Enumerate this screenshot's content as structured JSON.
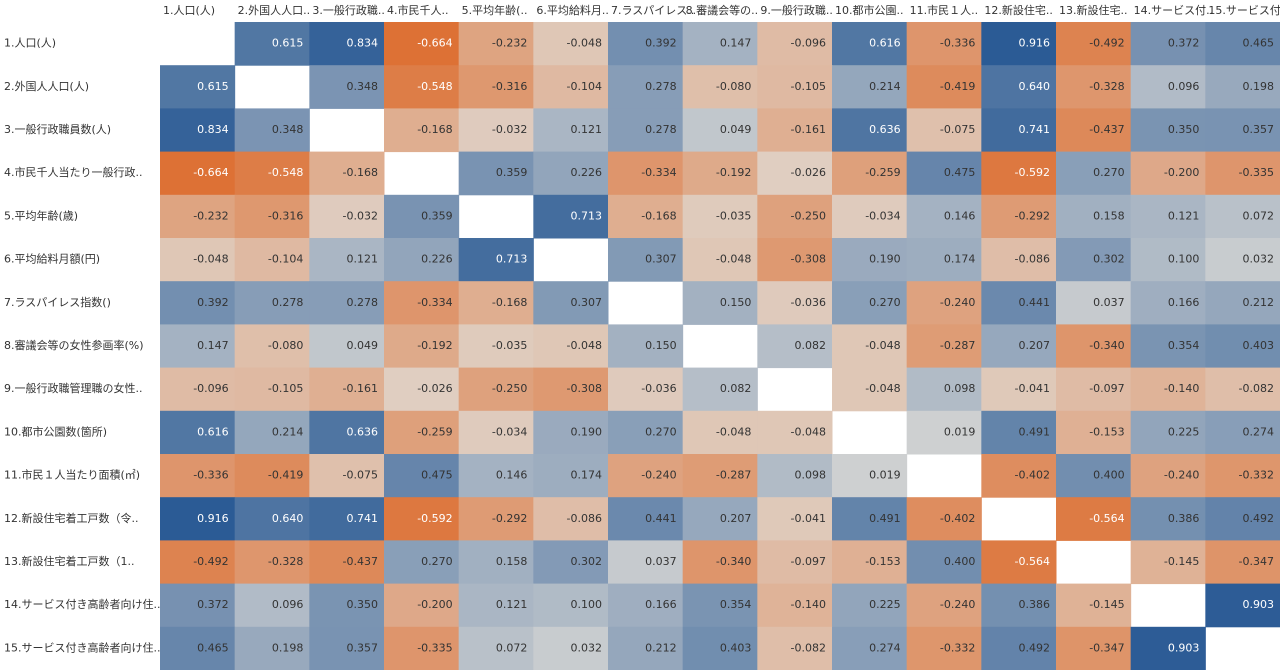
{
  "chart_data": {
    "type": "heatmap",
    "x_categories": [
      "1.人口(人)",
      "2.外国人人口..",
      "3.一般行政職..",
      "4.市民千人..",
      "5.平均年齢(..",
      "6.平均給料月..",
      "7.ラスパイレス..",
      "8.審議会等の..",
      "9.一般行政職..",
      "10.都市公園..",
      "11.市民１人..",
      "12.新設住宅..",
      "13.新設住宅..",
      "14.サービス付..",
      "15.サービス付.."
    ],
    "y_categories": [
      "1.人口(人)",
      "2.外国人人口(人)",
      "3.一般行政職員数(人)",
      "4.市民千人当たり一般行政..",
      "5.平均年齢(歳)",
      "6.平均給料月額(円)",
      "7.ラスパイレス指数()",
      "8.審議会等の女性参画率(%)",
      "9.一般行政職管理職の女性..",
      "10.都市公園数(箇所)",
      "11.市民１人当たり面積(㎡)",
      "12.新設住宅着工戸数（令..",
      "13.新設住宅着工戸数（1..",
      "14.サービス付き高齢者向け住..",
      "15.サービス付き高齢者向け住.."
    ],
    "values": [
      [
        null,
        0.615,
        0.834,
        -0.664,
        -0.232,
        -0.048,
        0.392,
        0.147,
        -0.096,
        0.616,
        -0.336,
        0.916,
        -0.492,
        0.372,
        0.465
      ],
      [
        0.615,
        null,
        0.348,
        -0.548,
        -0.316,
        -0.104,
        0.278,
        -0.08,
        -0.105,
        0.214,
        -0.419,
        0.64,
        -0.328,
        0.096,
        0.198
      ],
      [
        0.834,
        0.348,
        null,
        -0.168,
        -0.032,
        0.121,
        0.278,
        0.049,
        -0.161,
        0.636,
        -0.075,
        0.741,
        -0.437,
        0.35,
        0.357
      ],
      [
        -0.664,
        -0.548,
        -0.168,
        null,
        0.359,
        0.226,
        -0.334,
        -0.192,
        -0.026,
        -0.259,
        0.475,
        -0.592,
        0.27,
        -0.2,
        -0.335
      ],
      [
        -0.232,
        -0.316,
        -0.032,
        0.359,
        null,
        0.713,
        -0.168,
        -0.035,
        -0.25,
        -0.034,
        0.146,
        -0.292,
        0.158,
        0.121,
        0.072
      ],
      [
        -0.048,
        -0.104,
        0.121,
        0.226,
        0.713,
        null,
        0.307,
        -0.048,
        -0.308,
        0.19,
        0.174,
        -0.086,
        0.302,
        0.1,
        0.032
      ],
      [
        0.392,
        0.278,
        0.278,
        -0.334,
        -0.168,
        0.307,
        null,
        0.15,
        -0.036,
        0.27,
        -0.24,
        0.441,
        0.037,
        0.166,
        0.212
      ],
      [
        0.147,
        -0.08,
        0.049,
        -0.192,
        -0.035,
        -0.048,
        0.15,
        null,
        0.082,
        -0.048,
        -0.287,
        0.207,
        -0.34,
        0.354,
        0.403
      ],
      [
        -0.096,
        -0.105,
        -0.161,
        -0.026,
        -0.25,
        -0.308,
        -0.036,
        0.082,
        null,
        -0.048,
        0.098,
        -0.041,
        -0.097,
        -0.14,
        -0.082
      ],
      [
        0.616,
        0.214,
        0.636,
        -0.259,
        -0.034,
        0.19,
        0.27,
        -0.048,
        -0.048,
        null,
        0.019,
        0.491,
        -0.153,
        0.225,
        0.274
      ],
      [
        -0.336,
        -0.419,
        -0.075,
        0.475,
        0.146,
        0.174,
        -0.24,
        -0.287,
        0.098,
        0.019,
        null,
        -0.402,
        0.4,
        -0.24,
        -0.332
      ],
      [
        0.916,
        0.64,
        0.741,
        -0.592,
        -0.292,
        -0.086,
        0.441,
        0.207,
        -0.041,
        0.491,
        -0.402,
        null,
        -0.564,
        0.386,
        0.492
      ],
      [
        -0.492,
        -0.328,
        -0.437,
        0.27,
        0.158,
        0.302,
        0.037,
        -0.34,
        -0.097,
        -0.153,
        0.4,
        -0.564,
        null,
        -0.145,
        -0.347
      ],
      [
        0.372,
        0.096,
        0.35,
        -0.2,
        0.121,
        0.1,
        0.166,
        0.354,
        -0.14,
        0.225,
        -0.24,
        0.386,
        -0.145,
        null,
        0.903
      ],
      [
        0.465,
        0.198,
        0.357,
        -0.335,
        0.072,
        0.032,
        0.212,
        0.403,
        -0.082,
        0.274,
        -0.332,
        0.492,
        -0.347,
        0.903,
        null
      ]
    ],
    "value_labels": [
      [
        null,
        "0.615",
        "0.834",
        "-0.664",
        "-0.232",
        "-0.048",
        "0.392",
        "0.147",
        "-0.096",
        "0.616",
        "-0.336",
        "0.916",
        "-0.492",
        "0.372",
        "0.465"
      ],
      [
        "0.615",
        null,
        "0.348",
        "-0.548",
        "-0.316",
        "-0.104",
        "0.278",
        "-0.080",
        "-0.105",
        "0.214",
        "-0.419",
        "0.640",
        "-0.328",
        "0.096",
        "0.198"
      ],
      [
        "0.834",
        "0.348",
        null,
        "-0.168",
        "-0.032",
        "0.121",
        "0.278",
        "0.049",
        "-0.161",
        "0.636",
        "-0.075",
        "0.741",
        "-0.437",
        "0.350",
        "0.357"
      ],
      [
        "-0.664",
        "-0.548",
        "-0.168",
        null,
        "0.359",
        "0.226",
        "-0.334",
        "-0.192",
        "-0.026",
        "-0.259",
        "0.475",
        "-0.592",
        "0.270",
        "-0.200",
        "-0.335"
      ],
      [
        "-0.232",
        "-0.316",
        "-0.032",
        "0.359",
        null,
        "0.713",
        "-0.168",
        "-0.035",
        "-0.250",
        "-0.034",
        "0.146",
        "-0.292",
        "0.158",
        "0.121",
        "0.072"
      ],
      [
        "-0.048",
        "-0.104",
        "0.121",
        "0.226",
        "0.713",
        null,
        "0.307",
        "-0.048",
        "-0.308",
        "0.190",
        "0.174",
        "-0.086",
        "0.302",
        "0.100",
        "0.032"
      ],
      [
        "0.392",
        "0.278",
        "0.278",
        "-0.334",
        "-0.168",
        "0.307",
        null,
        "0.150",
        "-0.036",
        "0.270",
        "-0.240",
        "0.441",
        "0.037",
        "0.166",
        "0.212"
      ],
      [
        "0.147",
        "-0.080",
        "0.049",
        "-0.192",
        "-0.035",
        "-0.048",
        "0.150",
        null,
        "0.082",
        "-0.048",
        "-0.287",
        "0.207",
        "-0.340",
        "0.354",
        "0.403"
      ],
      [
        "-0.096",
        "-0.105",
        "-0.161",
        "-0.026",
        "-0.250",
        "-0.308",
        "-0.036",
        "0.082",
        null,
        "-0.048",
        "0.098",
        "-0.041",
        "-0.097",
        "-0.140",
        "-0.082"
      ],
      [
        "0.616",
        "0.214",
        "0.636",
        "-0.259",
        "-0.034",
        "0.190",
        "0.270",
        "-0.048",
        "-0.048",
        null,
        "0.019",
        "0.491",
        "-0.153",
        "0.225",
        "0.274"
      ],
      [
        "-0.336",
        "-0.419",
        "-0.075",
        "0.475",
        "0.146",
        "0.174",
        "-0.240",
        "-0.287",
        "0.098",
        "0.019",
        null,
        "-0.402",
        "0.400",
        "-0.240",
        "-0.332"
      ],
      [
        "0.916",
        "0.640",
        "0.741",
        "-0.592",
        "-0.292",
        "-0.086",
        "0.441",
        "0.207",
        "-0.041",
        "0.491",
        "-0.402",
        null,
        "-0.564",
        "0.386",
        "0.492"
      ],
      [
        "-0.492",
        "-0.328",
        "-0.437",
        "0.270",
        "0.158",
        "0.302",
        "0.037",
        "-0.340",
        "-0.097",
        "-0.153",
        "0.400",
        "-0.564",
        null,
        "-0.145",
        "-0.347"
      ],
      [
        "0.372",
        "0.096",
        "0.350",
        "-0.200",
        "0.121",
        "0.100",
        "0.166",
        "0.354",
        "-0.140",
        "0.225",
        "-0.240",
        "0.386",
        "-0.145",
        null,
        "0.903"
      ],
      [
        "0.465",
        "0.198",
        "0.357",
        "-0.335",
        "0.072",
        "0.032",
        "0.212",
        "0.403",
        "-0.082",
        "0.274",
        "-0.332",
        "0.492",
        "-0.347",
        "0.903",
        null
      ]
    ],
    "colors": {
      "negative": "#dc5a12",
      "zero": "#e0ddd8",
      "positive": "#2b5b95"
    }
  }
}
